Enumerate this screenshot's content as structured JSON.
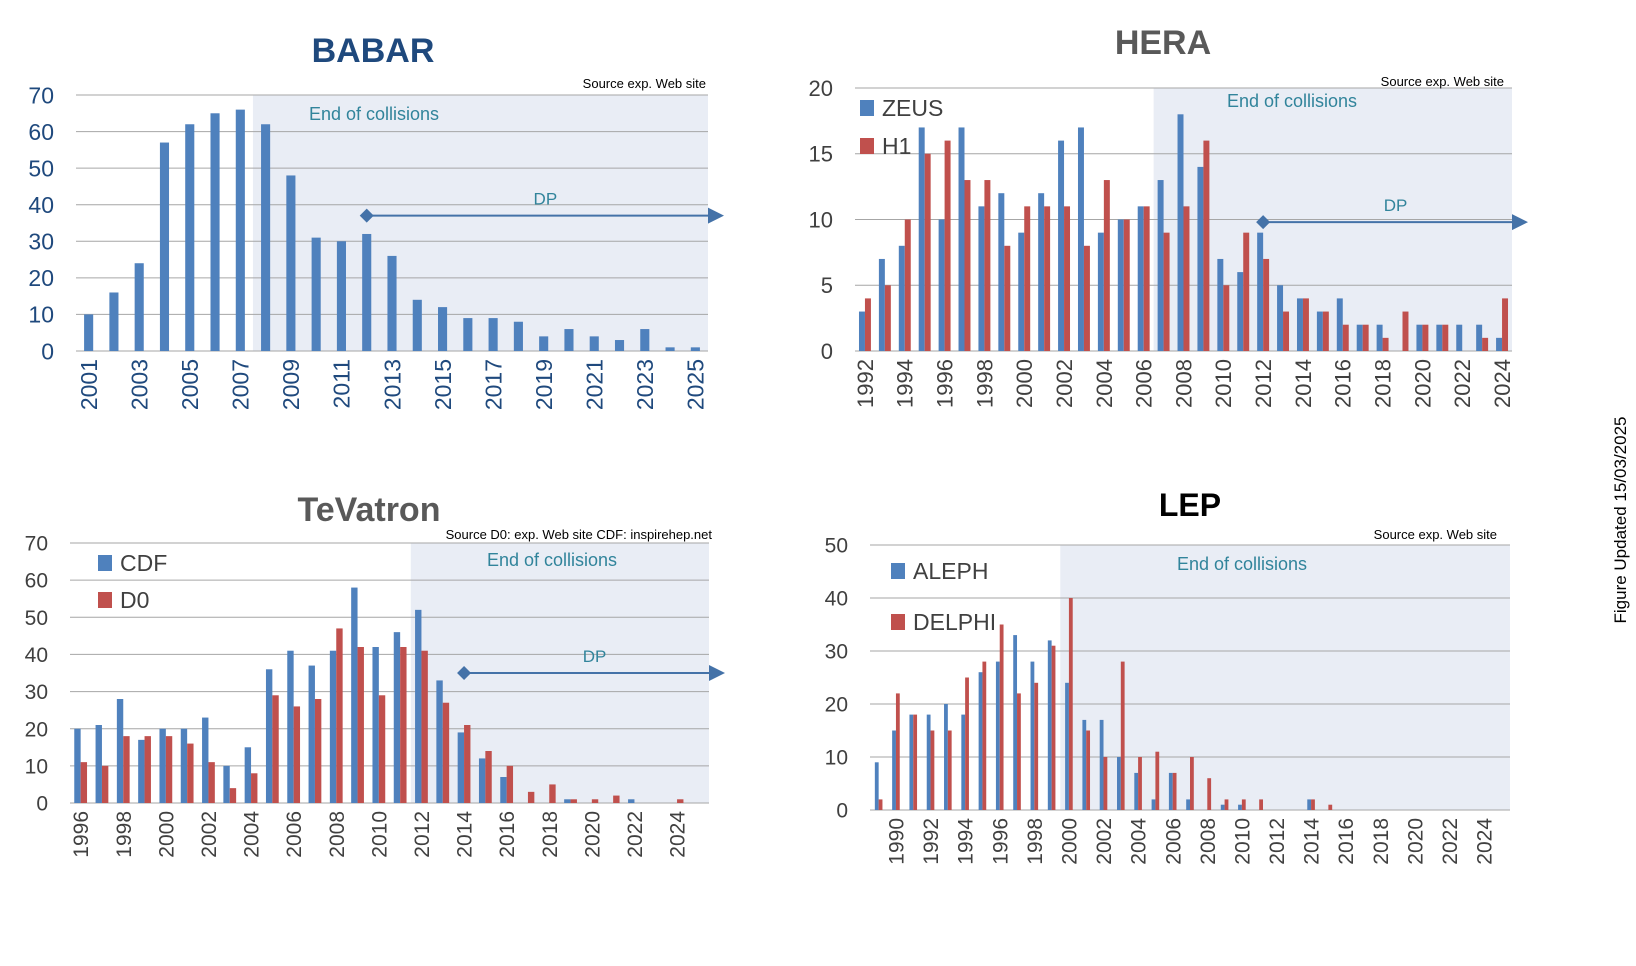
{
  "side_note": "Figure Updated 15/03/2025",
  "colors": {
    "blue": "#4f81bd",
    "red": "#c0504d",
    "grid": "#a6a6a6",
    "shade": "#e9edf5",
    "annot": "#31849b",
    "arrow": "#4472a8"
  },
  "chart_data": [
    {
      "id": "babar",
      "type": "bar",
      "title": "BABAR",
      "source": "Source exp. Web site",
      "xlabel": "",
      "ylabel": "",
      "ylim": [
        0,
        70
      ],
      "yticks": [
        0,
        10,
        20,
        30,
        40,
        50,
        60,
        70
      ],
      "categories": [
        "2001",
        "2002",
        "2003",
        "2004",
        "2005",
        "2006",
        "2007",
        "2008",
        "2009",
        "2010",
        "2011",
        "2012",
        "2013",
        "2014",
        "2015",
        "2016",
        "2017",
        "2018",
        "2019",
        "2020",
        "2021",
        "2022",
        "2023",
        "2024",
        "2025"
      ],
      "xtick_labels": [
        "2001",
        "2003",
        "2005",
        "2007",
        "2009",
        "2011",
        "2013",
        "2015",
        "2017",
        "2019",
        "2021",
        "2023",
        "2025"
      ],
      "series": [
        {
          "name": "BABAR",
          "values": [
            10,
            16,
            24,
            57,
            62,
            65,
            66,
            62,
            48,
            31,
            30,
            32,
            26,
            14,
            12,
            9,
            9,
            8,
            4,
            6,
            4,
            3,
            6,
            1,
            1
          ]
        }
      ],
      "end_of_collisions": {
        "label": "End of collisions",
        "from": "2008"
      },
      "dp": {
        "label": "DP",
        "from": "2012",
        "at_value": 37
      }
    },
    {
      "id": "hera",
      "type": "bar",
      "title": "HERA",
      "source": "Source exp. Web site",
      "xlabel": "",
      "ylabel": "",
      "ylim": [
        0,
        20
      ],
      "yticks": [
        0,
        5,
        10,
        15,
        20
      ],
      "categories": [
        "1992",
        "1993",
        "1994",
        "1995",
        "1996",
        "1997",
        "1998",
        "1999",
        "2000",
        "2001",
        "2002",
        "2003",
        "2004",
        "2005",
        "2006",
        "2007",
        "2008",
        "2009",
        "2010",
        "2011",
        "2012",
        "2013",
        "2014",
        "2015",
        "2016",
        "2017",
        "2018",
        "2019",
        "2020",
        "2021",
        "2022",
        "2023",
        "2024"
      ],
      "xtick_labels": [
        "1992",
        "1994",
        "1996",
        "1998",
        "2000",
        "2002",
        "2004",
        "2006",
        "2008",
        "2010",
        "2012",
        "2014",
        "2016",
        "2018",
        "2020",
        "2022",
        "2024"
      ],
      "series": [
        {
          "name": "ZEUS",
          "values": [
            3,
            7,
            8,
            17,
            10,
            17,
            11,
            12,
            9,
            12,
            16,
            17,
            9,
            10,
            11,
            13,
            18,
            14,
            7,
            6,
            9,
            5,
            4,
            3,
            4,
            2,
            2,
            0,
            2,
            2,
            2,
            2,
            1
          ]
        },
        {
          "name": "H1",
          "values": [
            4,
            5,
            10,
            15,
            16,
            13,
            13,
            8,
            11,
            11,
            11,
            8,
            13,
            10,
            11,
            9,
            11,
            16,
            5,
            9,
            7,
            3,
            4,
            3,
            2,
            2,
            1,
            3,
            2,
            2,
            0,
            1,
            4
          ]
        }
      ],
      "end_of_collisions": {
        "label": "End of collisions",
        "from": "2007"
      },
      "dp": {
        "label": "DP",
        "from": "2012",
        "at_value": 9.8
      }
    },
    {
      "id": "tevatron",
      "type": "bar",
      "title": "TeVatron",
      "source": "Source D0: exp. Web site  CDF: inspirehep.net",
      "xlabel": "",
      "ylabel": "",
      "ylim": [
        0,
        70
      ],
      "yticks": [
        0,
        10,
        20,
        30,
        40,
        50,
        60,
        70
      ],
      "categories": [
        "1996",
        "1997",
        "1998",
        "1999",
        "2000",
        "2001",
        "2002",
        "2003",
        "2004",
        "2005",
        "2006",
        "2007",
        "2008",
        "2009",
        "2010",
        "2011",
        "2012",
        "2013",
        "2014",
        "2015",
        "2016",
        "2017",
        "2018",
        "2019",
        "2020",
        "2021",
        "2022",
        "2023",
        "2024",
        "2025"
      ],
      "xtick_labels": [
        "1996",
        "1998",
        "2000",
        "2002",
        "2004",
        "2006",
        "2008",
        "2010",
        "2012",
        "2014",
        "2016",
        "2018",
        "2020",
        "2022",
        "2024"
      ],
      "series": [
        {
          "name": "CDF",
          "values": [
            20,
            21,
            28,
            17,
            20,
            20,
            23,
            10,
            15,
            36,
            41,
            37,
            41,
            58,
            42,
            46,
            52,
            33,
            19,
            12,
            7,
            0,
            0,
            1,
            0,
            0,
            1,
            0,
            0,
            0
          ]
        },
        {
          "name": "D0",
          "values": [
            11,
            10,
            18,
            18,
            18,
            16,
            11,
            4,
            8,
            29,
            26,
            28,
            47,
            42,
            29,
            42,
            41,
            27,
            21,
            14,
            10,
            3,
            5,
            1,
            1,
            2,
            0,
            0,
            1,
            0
          ]
        }
      ],
      "end_of_collisions": {
        "label": "End of collisions",
        "from": "2012"
      },
      "dp": {
        "label": "DP",
        "from": "2014",
        "at_value": 35
      }
    },
    {
      "id": "lep",
      "type": "bar",
      "title": "LEP",
      "source": "Source exp. Web site",
      "xlabel": "",
      "ylabel": "",
      "ylim": [
        0,
        50
      ],
      "yticks": [
        0,
        10,
        20,
        30,
        40,
        50
      ],
      "categories": [
        "1989",
        "1990",
        "1991",
        "1992",
        "1993",
        "1994",
        "1995",
        "1996",
        "1997",
        "1998",
        "1999",
        "2000",
        "2001",
        "2002",
        "2003",
        "2004",
        "2005",
        "2006",
        "2007",
        "2008",
        "2009",
        "2010",
        "2011",
        "2012",
        "2013",
        "2014",
        "2015",
        "2016",
        "2017",
        "2018",
        "2019",
        "2020",
        "2021",
        "2022",
        "2023",
        "2024",
        "2025"
      ],
      "xtick_labels": [
        "1990",
        "1992",
        "1994",
        "1996",
        "1998",
        "2000",
        "2002",
        "2004",
        "2006",
        "2008",
        "2010",
        "2012",
        "2014",
        "2016",
        "2018",
        "2020",
        "2022",
        "2024"
      ],
      "series": [
        {
          "name": "ALEPH",
          "values": [
            9,
            15,
            18,
            18,
            20,
            18,
            26,
            28,
            33,
            28,
            32,
            24,
            17,
            17,
            10,
            7,
            2,
            7,
            2,
            0,
            1,
            1,
            0,
            0,
            0,
            2,
            0,
            0,
            0,
            0,
            0,
            0,
            0,
            0,
            0,
            0,
            0
          ]
        },
        {
          "name": "DELPHI",
          "values": [
            2,
            22,
            18,
            15,
            15,
            25,
            28,
            35,
            22,
            24,
            31,
            40,
            15,
            10,
            28,
            10,
            11,
            7,
            10,
            6,
            2,
            2,
            2,
            0,
            0,
            2,
            1,
            0,
            0,
            0,
            0,
            0,
            0,
            0,
            0,
            0,
            0
          ]
        }
      ],
      "end_of_collisions": {
        "label": "End of collisions",
        "from": "2000"
      },
      "dp": null
    }
  ]
}
